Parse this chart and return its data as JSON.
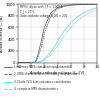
{
  "title_lines": [
    "MPS®-diode with I_F = 1,000 A",
    "T_J = 25°C",
    "Gate-cathode voltage U_GK = 20V"
  ],
  "xlabel": "Anode-cathode voltage Uₐₖ [V]",
  "ylabel": "Anode current Iₐₖ [A]",
  "xlim": [
    -2,
    10
  ],
  "ylim": [
    0,
    1000
  ],
  "yticks": [
    0,
    200,
    400,
    600,
    800,
    1000
  ],
  "xticks": [
    -2,
    0,
    2,
    4,
    6,
    8,
    10
  ],
  "bg_color": "#ffffff",
  "grid_color": "#cccccc",
  "legend": [
    {
      "label": "1. Intrinsic MOS characteristics (channel)",
      "color": "#555555",
      "ls": "-"
    },
    {
      "label": "2. MOS characteristics (including snap resistor)",
      "color": "#555555",
      "ls": "--"
    },
    {
      "label": "3. Diode (V-I) bias resistance contribution",
      "color": "#66ccee",
      "ls": "-"
    },
    {
      "label": "4. complete MPS characteristics",
      "color": "#66ccee",
      "ls": "--"
    }
  ],
  "curve1_x": [
    -2,
    -1.5,
    -1,
    -0.5,
    0,
    0.3,
    0.5,
    0.7,
    1.0,
    1.5,
    2,
    3,
    4,
    5,
    6,
    7,
    8,
    9,
    10
  ],
  "curve1_y": [
    0,
    0,
    0,
    0,
    0,
    0,
    5,
    30,
    120,
    350,
    600,
    850,
    940,
    970,
    985,
    992,
    996,
    998,
    999
  ],
  "curve2_x": [
    -2,
    -1.5,
    -1,
    -0.5,
    0,
    0.3,
    0.5,
    0.7,
    1.0,
    1.5,
    2,
    3,
    4,
    5,
    6,
    7,
    8,
    9,
    10
  ],
  "curve2_y": [
    0,
    0,
    0,
    0,
    0,
    0,
    2,
    15,
    70,
    250,
    500,
    800,
    920,
    960,
    978,
    988,
    993,
    996,
    998
  ],
  "curve3_x": [
    0,
    0.5,
    1,
    1.5,
    2,
    3,
    4,
    5,
    6,
    7,
    8,
    9,
    10
  ],
  "curve3_y": [
    0,
    2,
    8,
    25,
    60,
    180,
    360,
    540,
    680,
    780,
    850,
    900,
    940
  ],
  "curve4_x": [
    0,
    0.5,
    1,
    1.5,
    2,
    3,
    4,
    5,
    6,
    7,
    8,
    9,
    10
  ],
  "curve4_y": [
    0,
    1,
    4,
    15,
    40,
    130,
    280,
    450,
    600,
    710,
    800,
    860,
    910
  ]
}
